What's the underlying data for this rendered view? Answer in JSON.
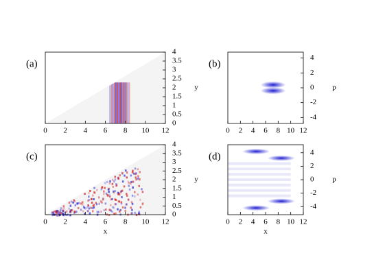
{
  "chart_data": [
    {
      "type": "heatmap",
      "panel_label": "(a)",
      "ylabel": "y",
      "xlim": [
        0,
        12
      ],
      "ylim": [
        0,
        4
      ],
      "xticks": [
        0,
        2,
        4,
        6,
        8,
        10,
        12
      ],
      "yticks": [
        0,
        0.5,
        1,
        1.5,
        2,
        2.5,
        3,
        3.5,
        4
      ]
    },
    {
      "type": "heatmap",
      "panel_label": "(b)",
      "ylabel": "p",
      "xlim": [
        0,
        12
      ],
      "ylim": [
        -4.8,
        4.8
      ],
      "xticks": [
        0,
        2,
        4,
        6,
        8,
        10,
        12
      ],
      "yticks": [
        -4,
        -2,
        0,
        2,
        4
      ]
    },
    {
      "type": "heatmap",
      "panel_label": "(c)",
      "xlabel": "x",
      "ylabel": "y",
      "xlim": [
        0,
        12
      ],
      "ylim": [
        0,
        4
      ],
      "xticks": [
        0,
        2,
        4,
        6,
        8,
        10,
        12
      ],
      "yticks": [
        0,
        0.5,
        1,
        1.5,
        2,
        2.5,
        3,
        3.5,
        4
      ]
    },
    {
      "type": "heatmap",
      "panel_label": "(d)",
      "xlabel": "x",
      "ylabel": "p",
      "xlim": [
        0,
        12
      ],
      "ylim": [
        -5.2,
        5.2
      ],
      "xticks": [
        0,
        2,
        4,
        6,
        8,
        10,
        12
      ],
      "yticks": [
        -4,
        -2,
        0,
        2,
        4
      ]
    }
  ]
}
